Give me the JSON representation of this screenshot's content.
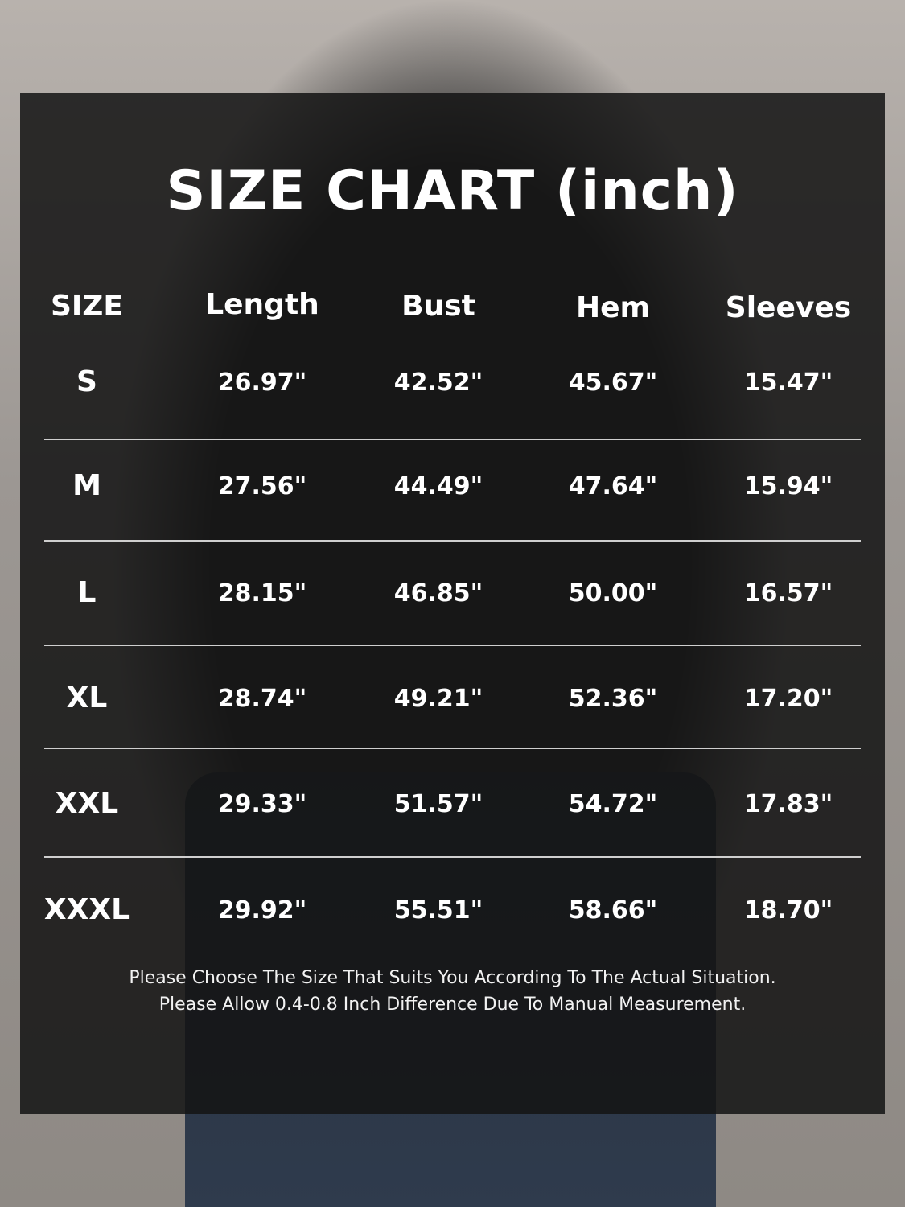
{
  "title": "SIZE CHART (inch)",
  "chart_data": {
    "type": "table",
    "title": "SIZE CHART (inch)",
    "columns": [
      "SIZE",
      "Length",
      "Bust",
      "Hem",
      "Sleeves"
    ],
    "rows": [
      [
        "S",
        "26.97\"",
        "42.52\"",
        "45.67\"",
        "15.47\""
      ],
      [
        "M",
        "27.56\"",
        "44.49\"",
        "47.64\"",
        "15.94\""
      ],
      [
        "L",
        "28.15\"",
        "46.85\"",
        "50.00\"",
        "16.57\""
      ],
      [
        "XL",
        "28.74\"",
        "49.21\"",
        "52.36\"",
        "17.20\""
      ],
      [
        "XXL",
        "29.33\"",
        "51.57\"",
        "54.72\"",
        "17.83\""
      ],
      [
        "XXXL",
        "29.92\"",
        "55.51\"",
        "58.66\"",
        "18.70\""
      ]
    ]
  },
  "notes": [
    "Please Choose The Size That Suits You According To The Actual Situation.",
    "Please Allow 0.4-0.8 Inch Difference Due To Manual Measurement."
  ]
}
